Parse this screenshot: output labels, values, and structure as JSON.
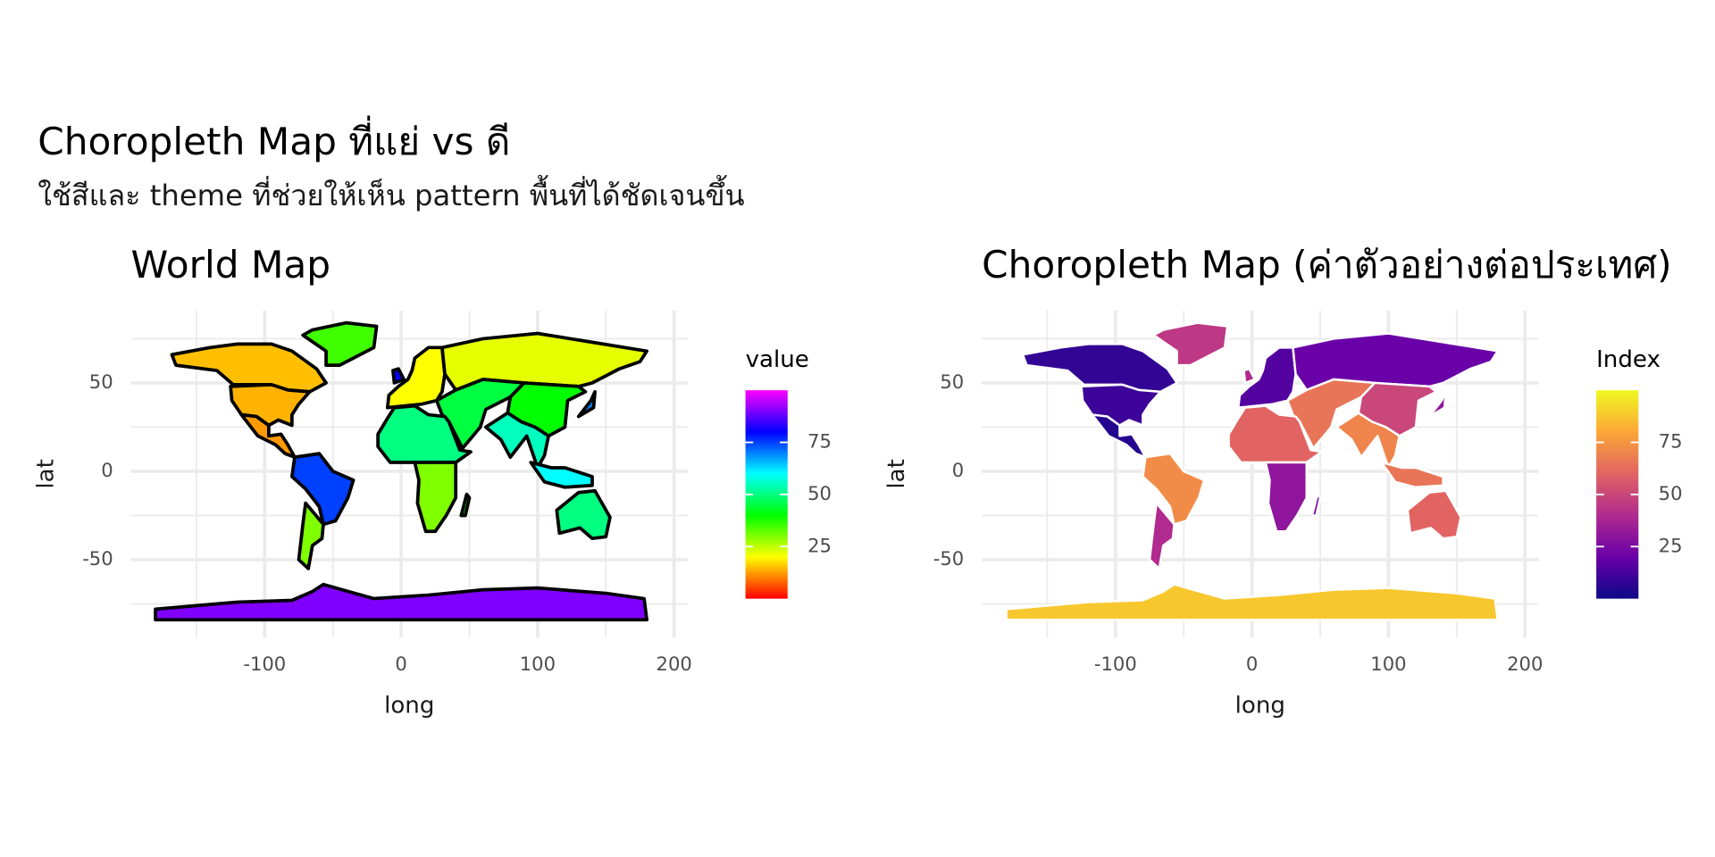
{
  "title": "Choropleth Map ที่แย่ vs ดี",
  "subtitle": "ใช้สีและ theme ที่ช่วยให้เห็น pattern พื้นที่ได้ชัดเจนขึ้น",
  "chart_data": [
    {
      "type": "choropleth",
      "title": "World Map",
      "xlabel": "long",
      "ylabel": "lat",
      "xlim": [
        -198,
        210
      ],
      "ylim": [
        -94,
        91
      ],
      "xticks": [
        -100,
        0,
        100,
        200
      ],
      "yticks": [
        -50,
        0,
        50
      ],
      "xminor": [
        -150,
        -50,
        50,
        150
      ],
      "yminor": [
        -75,
        -25,
        25,
        75
      ],
      "grid": true,
      "border_color": "#000000",
      "legend_title": "value",
      "colors": [
        "#ff0000",
        "#ffff00",
        "#00ff00",
        "#00ffff",
        "#0000ff",
        "#ff00ff"
      ],
      "clim": [
        0,
        100
      ],
      "cticks": [
        25,
        50,
        75
      ],
      "values": [
        15,
        14,
        12,
        35,
        75,
        30,
        20,
        22,
        45,
        40,
        55,
        50,
        30,
        40,
        60,
        50,
        90,
        70,
        80
      ],
      "regions": [
        {
          "lon": [
            -168,
            -140,
            -120,
            -95,
            -80,
            -62,
            -55,
            -67,
            -83,
            -95,
            -123,
            -135,
            -165
          ],
          "lat": [
            66,
            70,
            72,
            72,
            68,
            58,
            50,
            45,
            46,
            49,
            49,
            57,
            60
          ]
        },
        {
          "lon": [
            -125,
            -95,
            -83,
            -67,
            -75,
            -80,
            -80,
            -90,
            -97,
            -106,
            -117,
            -124
          ],
          "lat": [
            48,
            49,
            46,
            45,
            38,
            32,
            26,
            29,
            26,
            31,
            32,
            40
          ]
        },
        {
          "lon": [
            -117,
            -106,
            -97,
            -97,
            -88,
            -83,
            -78,
            -85,
            -92,
            -105
          ],
          "lat": [
            32,
            31,
            26,
            20,
            21,
            15,
            8,
            10,
            15,
            20
          ]
        },
        {
          "lon": [
            -55,
            -45,
            -20,
            -18,
            -40,
            -65,
            -72,
            -55
          ],
          "lat": [
            60,
            60,
            70,
            82,
            84,
            80,
            77,
            68
          ]
        },
        {
          "lon": [
            -78,
            -60,
            -50,
            -35,
            -39,
            -48,
            -57,
            -60,
            -70,
            -80
          ],
          "lat": [
            8,
            10,
            0,
            -5,
            -15,
            -28,
            -30,
            -20,
            -10,
            -3
          ]
        },
        {
          "lon": [
            -70,
            -57,
            -58,
            -65,
            -68,
            -75,
            -72
          ],
          "lat": [
            -18,
            -30,
            -38,
            -42,
            -55,
            -50,
            -30
          ]
        },
        {
          "lon": [
            -10,
            -9,
            -2,
            5,
            8,
            10,
            20,
            30,
            32,
            30,
            26,
            15
          ],
          "lat": [
            36,
            43,
            48,
            52,
            57,
            64,
            70,
            70,
            55,
            45,
            40,
            38
          ]
        },
        {
          "lon": [
            30,
            60,
            100,
            140,
            180,
            175,
            160,
            140,
            130,
            90,
            60,
            40,
            32
          ],
          "lat": [
            70,
            75,
            78,
            73,
            68,
            62,
            58,
            50,
            48,
            50,
            52,
            46,
            55
          ]
        },
        {
          "lon": [
            26,
            40,
            60,
            90,
            80,
            62,
            58,
            45,
            35,
            30
          ],
          "lat": [
            40,
            46,
            52,
            50,
            42,
            35,
            25,
            13,
            28,
            32
          ]
        },
        {
          "lon": [
            80,
            90,
            130,
            135,
            122,
            120,
            108,
            98,
            88,
            78
          ],
          "lat": [
            42,
            50,
            48,
            45,
            40,
            25,
            20,
            25,
            28,
            33
          ]
        },
        {
          "lon": [
            62,
            78,
            88,
            98,
            108,
            105,
            100,
            92,
            80,
            73
          ],
          "lat": [
            25,
            33,
            28,
            25,
            20,
            9,
            2,
            20,
            8,
            18
          ]
        },
        {
          "lon": [
            -17,
            -10,
            -5,
            10,
            20,
            32,
            35,
            43,
            51,
            40,
            10,
            -8,
            -17
          ],
          "lat": [
            21,
            30,
            36,
            37,
            32,
            31,
            28,
            12,
            11,
            5,
            5,
            5,
            14
          ]
        },
        {
          "lon": [
            10,
            40,
            40,
            33,
            25,
            18,
            12,
            13
          ],
          "lat": [
            5,
            5,
            -15,
            -25,
            -34,
            -34,
            -18,
            -5
          ]
        },
        {
          "lon": [
            44,
            47,
            50,
            48
          ],
          "lat": [
            -25,
            -25,
            -15,
            -13
          ]
        },
        {
          "lon": [
            95,
            105,
            120,
            140,
            140,
            120,
            110
          ],
          "lat": [
            5,
            -6,
            -9,
            -8,
            -3,
            2,
            2
          ]
        },
        {
          "lon": [
            114,
            130,
            142,
            153,
            150,
            140,
            131,
            116
          ],
          "lat": [
            -22,
            -12,
            -11,
            -26,
            -37,
            -38,
            -32,
            -35
          ]
        },
        {
          "lon": [
            -180,
            180,
            178,
            150,
            100,
            60,
            20,
            -20,
            -57,
            -65,
            -80,
            -120,
            -180
          ],
          "lat": [
            -84,
            -84,
            -72,
            -69,
            -66,
            -67,
            -70,
            -72,
            -64,
            -68,
            -73,
            -74,
            -78
          ]
        },
        {
          "lon": [
            130,
            141,
            142,
            139
          ],
          "lat": [
            31,
            36,
            45,
            40
          ]
        },
        {
          "lon": [
            -5,
            2,
            -2,
            -6
          ],
          "lat": [
            50,
            52,
            58,
            57
          ]
        }
      ]
    },
    {
      "type": "choropleth",
      "title": "Choropleth Map (ค่าตัวอย่างต่อประเทศ)",
      "xlabel": "long",
      "ylabel": "lat",
      "xlim": [
        -198,
        210
      ],
      "ylim": [
        -94,
        91
      ],
      "xticks": [
        -100,
        0,
        100,
        200
      ],
      "yticks": [
        -50,
        0,
        50
      ],
      "xminor": [
        -150,
        -50,
        50,
        150
      ],
      "yminor": [
        -75,
        -25,
        25,
        75
      ],
      "grid": true,
      "border_color": "#ffffff",
      "legend_title": "Index",
      "colors": [
        "#0d0887",
        "#6a00a8",
        "#b12a90",
        "#e16462",
        "#fca636",
        "#f0f921"
      ],
      "clim": [
        0,
        100
      ],
      "cticks": [
        25,
        50,
        75
      ],
      "values": [
        8,
        10,
        5,
        45,
        72,
        40,
        15,
        20,
        65,
        50,
        70,
        60,
        30,
        25,
        65,
        60,
        88,
        30,
        40
      ]
    }
  ]
}
